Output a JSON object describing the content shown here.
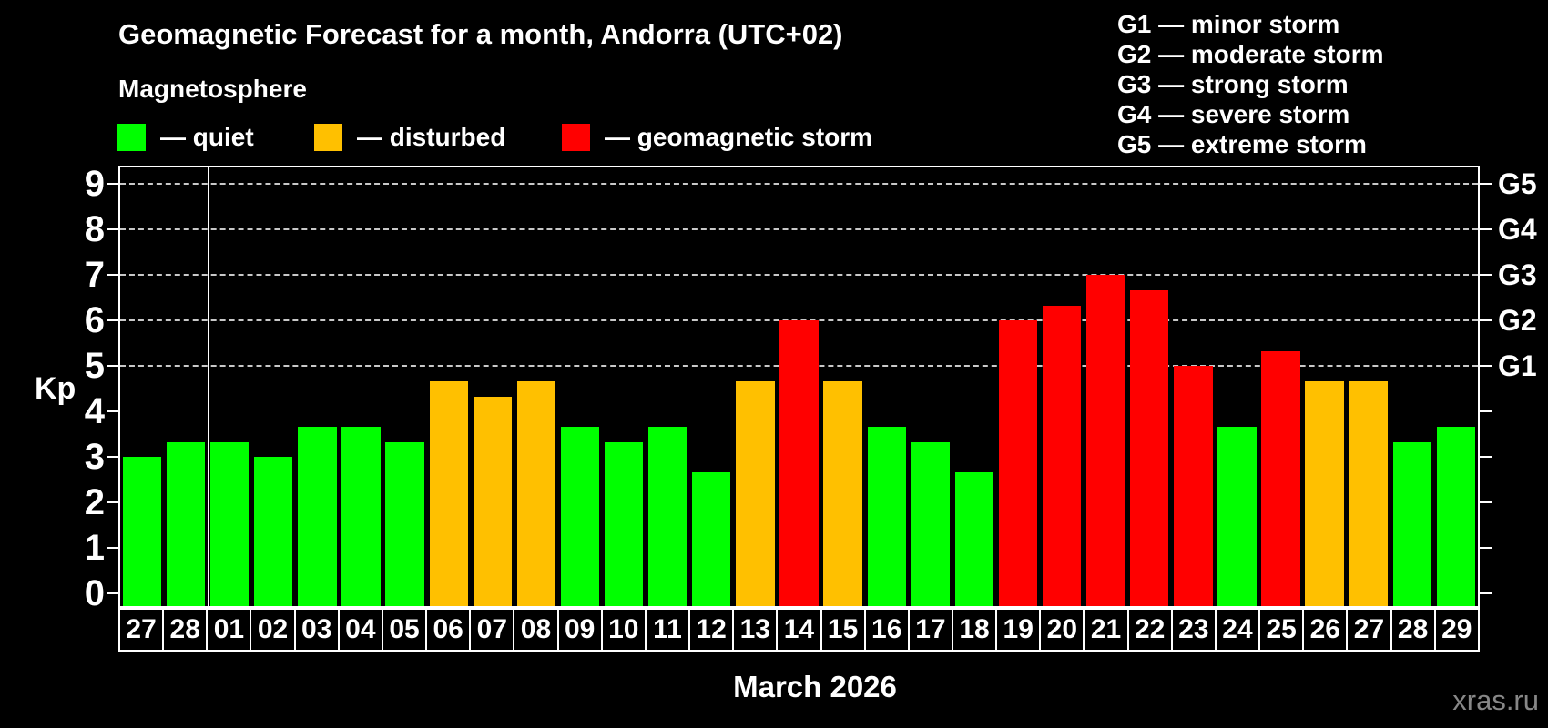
{
  "title": "Geomagnetic Forecast for a month, Andorra (UTC+02)",
  "subtitle": "Magnetosphere",
  "legend": {
    "items": [
      {
        "key": "quiet",
        "label": "— quiet"
      },
      {
        "key": "disturbed",
        "label": "— disturbed"
      },
      {
        "key": "storm",
        "label": "— geomagnetic storm"
      }
    ]
  },
  "g_legend": [
    "G1 — minor storm",
    "G2 — moderate storm",
    "G3 — strong storm",
    "G4 — severe storm",
    "G5 — extreme storm"
  ],
  "colors": {
    "background": "#000000",
    "text": "#ffffff",
    "axis": "#ffffff",
    "gridline": "#c8c8c8",
    "watermark": "#878787",
    "status": {
      "quiet": "#00ff00",
      "disturbed": "#ffc000",
      "storm": "#ff0000"
    }
  },
  "chart_data": {
    "type": "bar",
    "title": "Geomagnetic Forecast for a month, Andorra (UTC+02)",
    "ylabel": "Kp",
    "xlabel": "March 2026",
    "ylim": [
      0,
      9
    ],
    "yticks": [
      0,
      1,
      2,
      3,
      4,
      5,
      6,
      7,
      8,
      9
    ],
    "gridlines_at": [
      5,
      6,
      7,
      8,
      9
    ],
    "grid": "dashed",
    "legend_position": "top",
    "right_axis": [
      {
        "kp": 5,
        "label": "G1"
      },
      {
        "kp": 6,
        "label": "G2"
      },
      {
        "kp": 7,
        "label": "G3"
      },
      {
        "kp": 8,
        "label": "G4"
      },
      {
        "kp": 9,
        "label": "G5"
      }
    ],
    "categories": [
      "27",
      "28",
      "01",
      "02",
      "03",
      "04",
      "05",
      "06",
      "07",
      "08",
      "09",
      "10",
      "11",
      "12",
      "13",
      "14",
      "15",
      "16",
      "17",
      "18",
      "19",
      "20",
      "21",
      "22",
      "23",
      "24",
      "25",
      "26",
      "27",
      "28",
      "29"
    ],
    "values": [
      3,
      3.33,
      3.33,
      3,
      3.67,
      3.67,
      3.33,
      4.67,
      4.33,
      4.67,
      3.67,
      3.33,
      3.67,
      2.67,
      4.67,
      6,
      4.67,
      3.67,
      3.33,
      2.67,
      6,
      6.33,
      7,
      6.67,
      5,
      3.67,
      5.33,
      4.67,
      4.67,
      3.33,
      3.67
    ],
    "statuses": [
      "quiet",
      "quiet",
      "quiet",
      "quiet",
      "quiet",
      "quiet",
      "quiet",
      "disturbed",
      "disturbed",
      "disturbed",
      "quiet",
      "quiet",
      "quiet",
      "quiet",
      "disturbed",
      "storm",
      "disturbed",
      "quiet",
      "quiet",
      "quiet",
      "storm",
      "storm",
      "storm",
      "storm",
      "storm",
      "quiet",
      "storm",
      "disturbed",
      "disturbed",
      "quiet",
      "quiet"
    ],
    "separator_after_index": 1
  },
  "watermark": "xras.ru"
}
